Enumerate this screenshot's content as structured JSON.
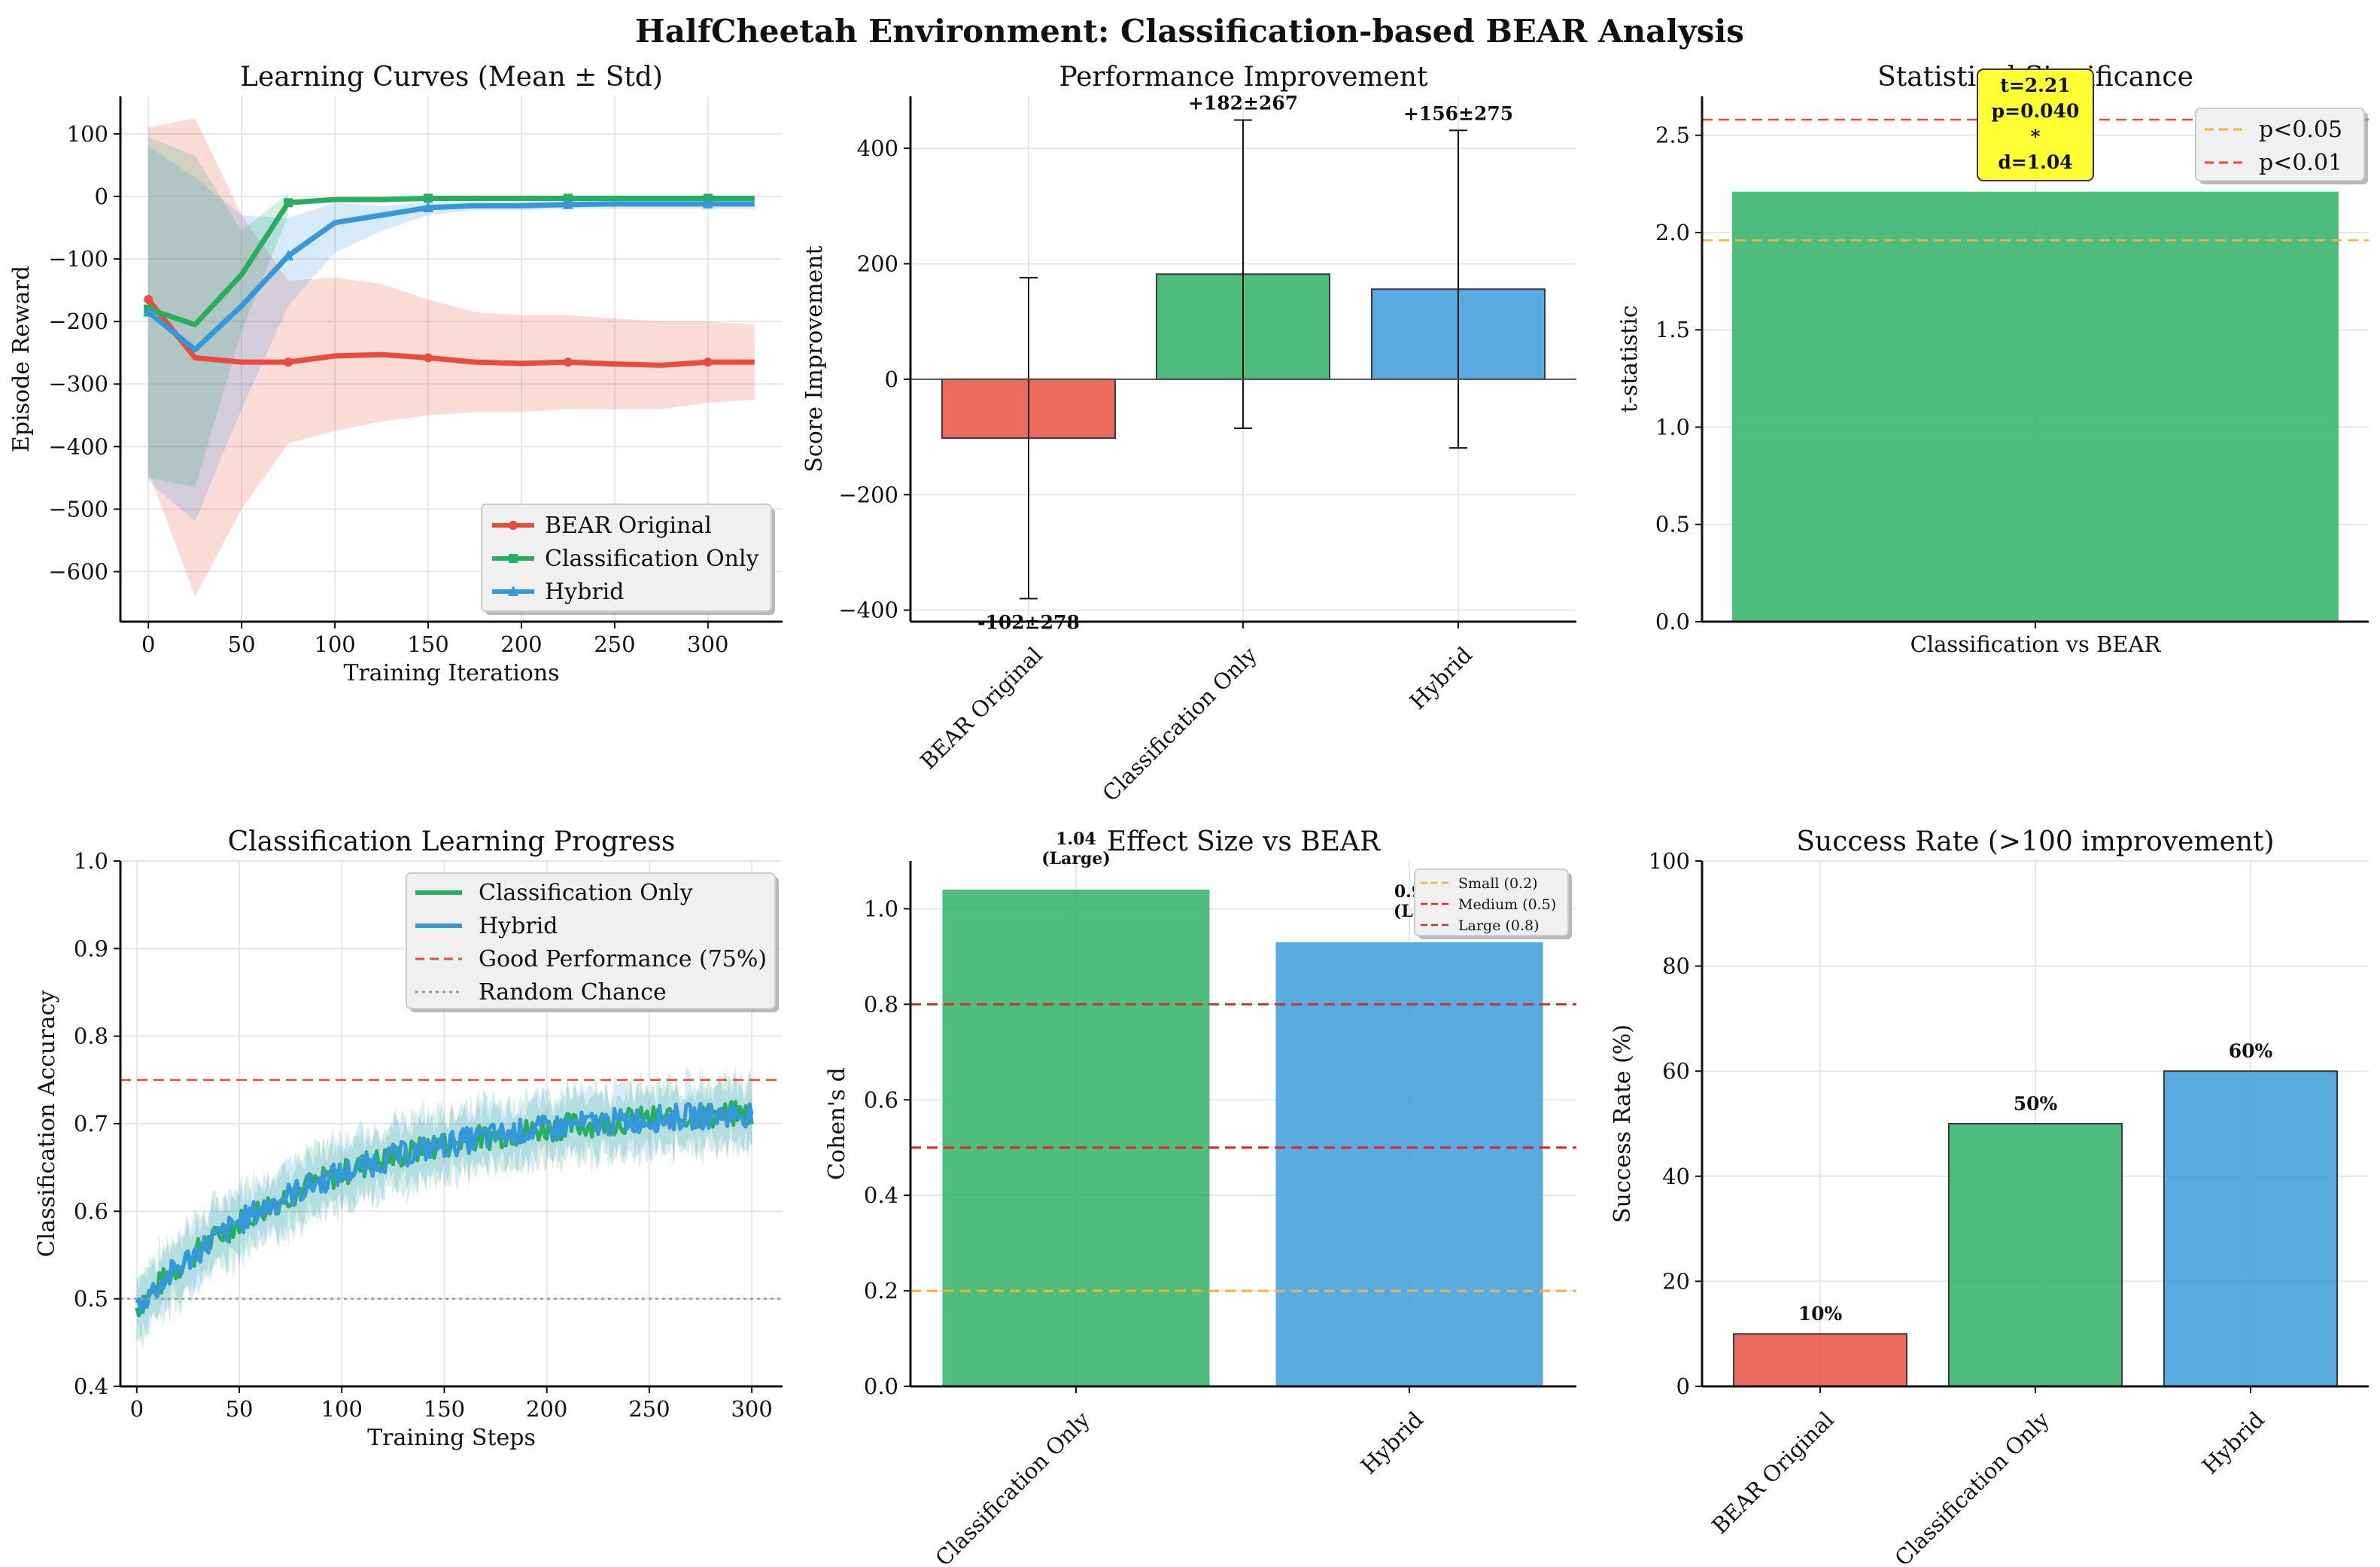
{
  "suptitle": "HalfCheetah Environment: Classification-based BEAR Analysis",
  "colors": {
    "bear": "#e74c3c",
    "classification": "#27ae60",
    "hybrid": "#3498db",
    "axis": "#111111",
    "grid": "#e6e6e6",
    "annot_bg": "#ffff33"
  },
  "chart_data": [
    {
      "id": "learning_curves",
      "type": "line",
      "title": "Learning Curves (Mean ± Std)",
      "xlabel": "Training Iterations",
      "ylabel": "Episode Reward",
      "xlim": [
        -15,
        340
      ],
      "ylim": [
        -680,
        160
      ],
      "xticks": [
        0,
        50,
        100,
        150,
        200,
        250,
        300
      ],
      "yticks": [
        100,
        0,
        -100,
        -200,
        -300,
        -400,
        -500,
        -600
      ],
      "x": [
        0,
        25,
        50,
        75,
        100,
        125,
        150,
        175,
        200,
        225,
        250,
        275,
        300,
        325
      ],
      "series": [
        {
          "name": "BEAR Original",
          "color": "#e74c3c",
          "marker": "o",
          "values": [
            -165,
            -258,
            -265,
            -265,
            -255,
            -253,
            -258,
            -265,
            -267,
            -265,
            -268,
            -270,
            -265,
            -265
          ],
          "lower": [
            -440,
            -640,
            -500,
            -395,
            -375,
            -360,
            -350,
            -345,
            -345,
            -340,
            -340,
            -340,
            -330,
            -325
          ],
          "upper": [
            110,
            125,
            -30,
            -135,
            -130,
            -140,
            -165,
            -185,
            -190,
            -190,
            -195,
            -200,
            -200,
            -205
          ]
        },
        {
          "name": "Classification Only",
          "color": "#27ae60",
          "marker": "s",
          "values": [
            -180,
            -205,
            -125,
            -10,
            -5,
            -5,
            -3,
            -3,
            -3,
            -3,
            -3,
            -3,
            -3,
            -3
          ],
          "lower": [
            -450,
            -465,
            -215,
            -30,
            -15,
            -12,
            -10,
            -10,
            -10,
            -10,
            -10,
            -10,
            -10,
            -10
          ],
          "upper": [
            95,
            65,
            -55,
            5,
            3,
            2,
            2,
            2,
            2,
            2,
            2,
            2,
            2,
            2
          ],
          "hide_band_after": 75
        },
        {
          "name": "Hybrid",
          "color": "#3498db",
          "marker": "^",
          "values": [
            -185,
            -245,
            -175,
            -95,
            -42,
            -30,
            -18,
            -15,
            -15,
            -13,
            -12,
            -12,
            -12,
            -12
          ],
          "lower": [
            -455,
            -520,
            -340,
            -175,
            -90,
            -55,
            -30,
            -22,
            -22,
            -20,
            -20,
            -20,
            -20,
            -20
          ],
          "upper": [
            80,
            30,
            -30,
            -35,
            -10,
            -15,
            -10,
            -8,
            -8,
            -6,
            -5,
            -5,
            -5,
            -5
          ]
        }
      ],
      "legend_loc": "lower-right"
    },
    {
      "id": "performance_improvement",
      "type": "bar",
      "title": "Performance Improvement",
      "ylabel": "Score Improvement",
      "categories": [
        "BEAR Original",
        "Classification Only",
        "Hybrid"
      ],
      "values": [
        -102,
        182,
        156
      ],
      "errors": [
        278,
        267,
        275
      ],
      "labels": [
        "-102±278",
        "+182±267",
        "+156±275"
      ],
      "ylim": [
        -420,
        490
      ],
      "yticks": [
        400,
        200,
        0,
        -200,
        -400
      ],
      "colors": [
        "#e74c3c",
        "#27ae60",
        "#3498db"
      ]
    },
    {
      "id": "statistical_significance",
      "type": "bar",
      "title": "Statistical Significance",
      "ylabel": "t-statistic",
      "categories": [
        "Classification vs BEAR"
      ],
      "values": [
        2.21
      ],
      "ylim": [
        0,
        2.7
      ],
      "yticks": [
        0.0,
        0.5,
        1.0,
        1.5,
        2.0,
        2.5
      ],
      "thresholds": [
        {
          "label": "p<0.05",
          "value": 1.96,
          "color": "#f5b041"
        },
        {
          "label": "p<0.01",
          "value": 2.58,
          "color": "#e74c3c"
        }
      ],
      "annotation": [
        "t=2.21",
        "p=0.040",
        "*",
        "d=1.04"
      ],
      "color": "#27ae60"
    },
    {
      "id": "classification_progress",
      "type": "line",
      "title": "Classification Learning Progress",
      "xlabel": "Training Steps",
      "ylabel": "Classification Accuracy",
      "xlim": [
        -8,
        315
      ],
      "ylim": [
        0.4,
        1.0
      ],
      "xticks": [
        0,
        50,
        100,
        150,
        200,
        250,
        300
      ],
      "yticks": [
        1.0,
        0.9,
        0.8,
        0.7,
        0.6,
        0.5,
        0.4
      ],
      "curve": {
        "start": 0.49,
        "end": 0.72,
        "rate": 0.011,
        "steps": 300,
        "noise": 0.015,
        "band": 0.035
      },
      "series": [
        {
          "name": "Classification Only",
          "color": "#27ae60"
        },
        {
          "name": "Hybrid",
          "color": "#3498db"
        }
      ],
      "hlines": [
        {
          "name": "Good Performance (75%)",
          "value": 0.75,
          "color": "#e74c3c",
          "style": "dashed"
        },
        {
          "name": "Random Chance",
          "value": 0.5,
          "color": "#999999",
          "style": "dotted"
        }
      ]
    },
    {
      "id": "effect_size",
      "type": "bar",
      "title": "Effect Size vs BEAR",
      "ylabel": "Cohen's d",
      "categories": [
        "Classification Only",
        "Hybrid"
      ],
      "values": [
        1.04,
        0.93
      ],
      "value_labels": [
        "1.04",
        "0.9"
      ],
      "size_labels": [
        "(Large)",
        "(La"
      ],
      "ylim": [
        0,
        1.1
      ],
      "yticks": [
        0.0,
        0.2,
        0.4,
        0.6,
        0.8,
        1.0
      ],
      "colors": [
        "#27ae60",
        "#3498db"
      ],
      "thresholds": [
        {
          "name": "Small (0.2)",
          "value": 0.2,
          "color": "#f5b041"
        },
        {
          "name": "Medium (0.5)",
          "value": 0.5,
          "color": "#e82020"
        },
        {
          "name": "Large (0.8)",
          "value": 0.8,
          "color": "#c0392b"
        }
      ]
    },
    {
      "id": "success_rate",
      "type": "bar",
      "title": "Success Rate (>100 improvement)",
      "ylabel": "Success Rate (%)",
      "categories": [
        "BEAR Original",
        "Classification Only",
        "Hybrid"
      ],
      "values": [
        10,
        50,
        60
      ],
      "labels": [
        "10%",
        "50%",
        "60%"
      ],
      "ylim": [
        0,
        100
      ],
      "yticks": [
        0,
        20,
        40,
        60,
        80,
        100
      ],
      "colors": [
        "#e74c3c",
        "#27ae60",
        "#3498db"
      ]
    }
  ]
}
